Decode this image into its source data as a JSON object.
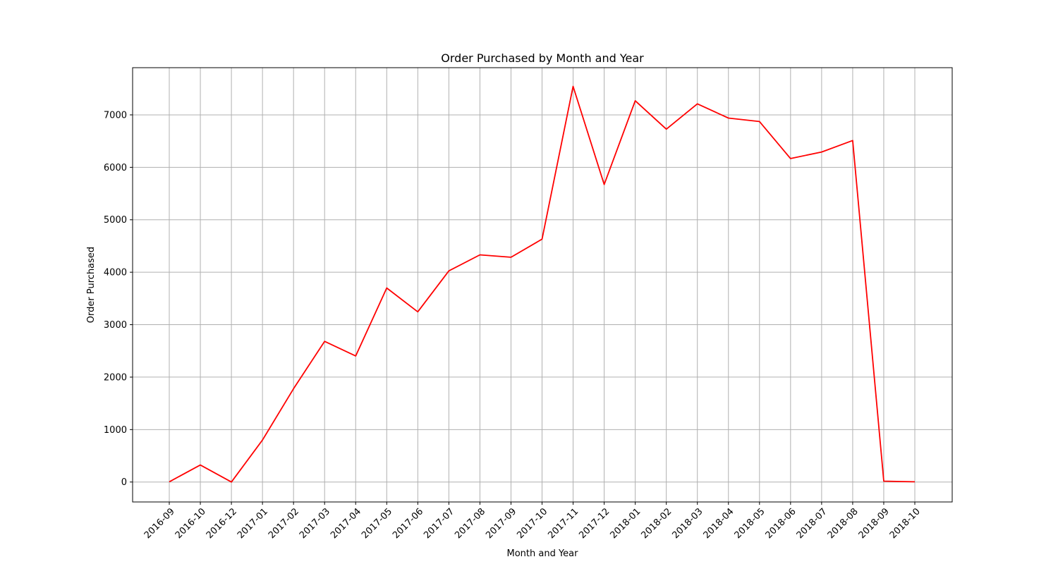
{
  "chart_data": {
    "type": "line",
    "title": "Order Purchased by Month and Year",
    "xlabel": "Month and Year",
    "ylabel": "Order Purchased",
    "categories": [
      "2016-09",
      "2016-10",
      "2016-12",
      "2017-01",
      "2017-02",
      "2017-03",
      "2017-04",
      "2017-05",
      "2017-06",
      "2017-07",
      "2017-08",
      "2017-09",
      "2017-10",
      "2017-11",
      "2017-12",
      "2018-01",
      "2018-02",
      "2018-03",
      "2018-04",
      "2018-05",
      "2018-06",
      "2018-07",
      "2018-08",
      "2018-09",
      "2018-10"
    ],
    "series": [
      {
        "color": "#ff0000",
        "values": [
          4,
          324,
          1,
          800,
          1780,
          2682,
          2404,
          3700,
          3245,
          4026,
          4331,
          4285,
          4631,
          7544,
          5673,
          7269,
          6728,
          7211,
          6939,
          6873,
          6167,
          6292,
          6512,
          16,
          4
        ]
      }
    ],
    "ylim": [
      -380,
      7900
    ],
    "yticks": [
      0,
      1000,
      2000,
      3000,
      4000,
      5000,
      6000,
      7000
    ],
    "grid": true,
    "legend": "none"
  }
}
